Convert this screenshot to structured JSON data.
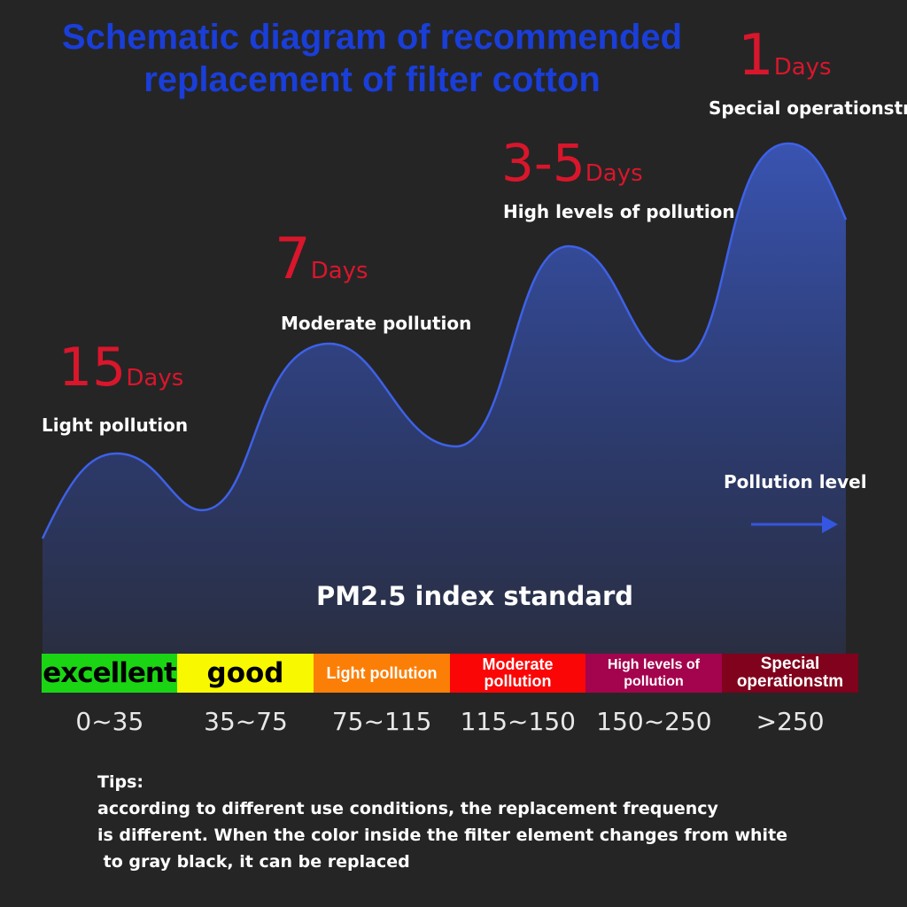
{
  "title": "Schematic diagram of recommended replacement of filter cotton",
  "peaks": [
    {
      "value": "15",
      "unit": "Days",
      "label": "Light pollution"
    },
    {
      "value": "7",
      "unit": "Days",
      "label": "Moderate pollution"
    },
    {
      "value": "3-5",
      "unit": "Days",
      "label": "High levels of pollution"
    },
    {
      "value": "1",
      "unit": "Days",
      "label": "Special operationstm"
    }
  ],
  "arrow_label": "Pollution level",
  "pm_title": "PM2.5 index standard",
  "levels": [
    {
      "label": "excellent",
      "color": "#1bd515",
      "text_color": "#000000",
      "range": "0~35"
    },
    {
      "label": "good",
      "color": "#f8f801",
      "text_color": "#000000",
      "range": "35~75"
    },
    {
      "label": "Light pollution",
      "color": "#fb7f07",
      "text_color": "#ffffff",
      "range": "75~115"
    },
    {
      "label": "Moderate pollution",
      "color": "#fb0606",
      "text_color": "#ffffff",
      "range": "115~150"
    },
    {
      "label": "High levels of pollution",
      "color": "#a3044d",
      "text_color": "#ffffff",
      "range": "150~250"
    },
    {
      "label": "Special operationstm",
      "color": "#80021c",
      "text_color": "#ffffff",
      "range": ">250"
    }
  ],
  "tips": {
    "heading": "Tips:",
    "lines": [
      "according to different use conditions, the replacement frequency",
      "is different. When the color inside the filter element changes from white",
      " to gray black, it can be replaced"
    ]
  },
  "colors": {
    "wave_line": "#3e61e6",
    "days_red": "#d9162b",
    "title_blue": "#1a3ed8",
    "arrow": "#3556e0"
  }
}
